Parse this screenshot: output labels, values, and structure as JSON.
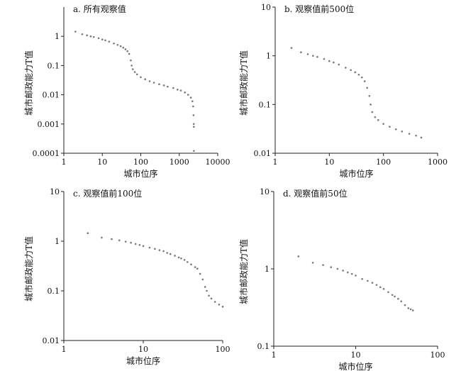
{
  "chart_data": [
    {
      "id": "a",
      "type": "scatter",
      "title": "a. 所有观察值",
      "xlabel": "城市位序",
      "ylabel": "城市邮政能力T值",
      "x_scale": "log",
      "y_scale": "log",
      "xlim": [
        1,
        10000
      ],
      "ylim": [
        0.0001,
        10
      ],
      "x_ticks": [
        "1",
        "10",
        "100",
        "1000",
        "10000"
      ],
      "y_ticks": [
        "0.0001",
        "0.001",
        "0.01",
        "0.1",
        "1"
      ],
      "points": [
        [
          2,
          1.45
        ],
        [
          3,
          1.18
        ],
        [
          4,
          1.08
        ],
        [
          5,
          1.0
        ],
        [
          6,
          0.95
        ],
        [
          8,
          0.86
        ],
        [
          10,
          0.78
        ],
        [
          12,
          0.73
        ],
        [
          15,
          0.66
        ],
        [
          20,
          0.57
        ],
        [
          25,
          0.51
        ],
        [
          30,
          0.46
        ],
        [
          35,
          0.41
        ],
        [
          40,
          0.36
        ],
        [
          45,
          0.31
        ],
        [
          50,
          0.25
        ],
        [
          55,
          0.15
        ],
        [
          58,
          0.1
        ],
        [
          62,
          0.075
        ],
        [
          70,
          0.06
        ],
        [
          80,
          0.05
        ],
        [
          100,
          0.04
        ],
        [
          130,
          0.034
        ],
        [
          170,
          0.029
        ],
        [
          220,
          0.026
        ],
        [
          300,
          0.023
        ],
        [
          400,
          0.021
        ],
        [
          500,
          0.019
        ],
        [
          700,
          0.017
        ],
        [
          900,
          0.015
        ],
        [
          1100,
          0.014
        ],
        [
          1400,
          0.012
        ],
        [
          1700,
          0.01
        ],
        [
          2000,
          0.008
        ],
        [
          2200,
          0.006
        ],
        [
          2300,
          0.004
        ],
        [
          2350,
          0.002
        ],
        [
          2380,
          0.001
        ],
        [
          2390,
          0.0008
        ],
        [
          2400,
          0.00012
        ]
      ]
    },
    {
      "id": "b",
      "type": "scatter",
      "title": "b. 观察值前500位",
      "xlabel": "城市位序",
      "ylabel": "城市邮政能力T值",
      "x_scale": "log",
      "y_scale": "log",
      "xlim": [
        1,
        1000
      ],
      "ylim": [
        0.01,
        10
      ],
      "x_ticks": [
        "1",
        "10",
        "100",
        "1000"
      ],
      "y_ticks": [
        "0.01",
        "0.1",
        "1",
        "10"
      ],
      "points": [
        [
          2,
          1.45
        ],
        [
          3,
          1.18
        ],
        [
          4,
          1.08
        ],
        [
          5,
          1.0
        ],
        [
          6,
          0.95
        ],
        [
          8,
          0.86
        ],
        [
          10,
          0.78
        ],
        [
          12,
          0.73
        ],
        [
          15,
          0.66
        ],
        [
          20,
          0.57
        ],
        [
          25,
          0.51
        ],
        [
          30,
          0.46
        ],
        [
          35,
          0.41
        ],
        [
          40,
          0.36
        ],
        [
          45,
          0.3
        ],
        [
          50,
          0.22
        ],
        [
          55,
          0.15
        ],
        [
          58,
          0.1
        ],
        [
          62,
          0.07
        ],
        [
          70,
          0.055
        ],
        [
          80,
          0.048
        ],
        [
          100,
          0.04
        ],
        [
          130,
          0.035
        ],
        [
          170,
          0.031
        ],
        [
          220,
          0.028
        ],
        [
          300,
          0.025
        ],
        [
          400,
          0.023
        ],
        [
          500,
          0.021
        ]
      ]
    },
    {
      "id": "c",
      "type": "scatter",
      "title": "c. 观察值前100位",
      "xlabel": "城市位序",
      "ylabel": "城市邮政能力T值",
      "x_scale": "log",
      "y_scale": "log",
      "xlim": [
        1,
        100
      ],
      "ylim": [
        0.01,
        10
      ],
      "x_ticks": [
        "1",
        "10",
        "100"
      ],
      "y_ticks": [
        "0.01",
        "0.1",
        "1",
        "10"
      ],
      "points": [
        [
          2,
          1.45
        ],
        [
          3,
          1.18
        ],
        [
          4,
          1.1
        ],
        [
          5,
          1.04
        ],
        [
          6,
          0.98
        ],
        [
          7,
          0.93
        ],
        [
          8,
          0.88
        ],
        [
          9,
          0.84
        ],
        [
          10,
          0.8
        ],
        [
          12,
          0.74
        ],
        [
          14,
          0.7
        ],
        [
          16,
          0.66
        ],
        [
          18,
          0.63
        ],
        [
          20,
          0.58
        ],
        [
          22,
          0.55
        ],
        [
          25,
          0.51
        ],
        [
          28,
          0.47
        ],
        [
          30,
          0.45
        ],
        [
          33,
          0.42
        ],
        [
          36,
          0.38
        ],
        [
          40,
          0.34
        ],
        [
          45,
          0.3
        ],
        [
          48,
          0.28
        ],
        [
          52,
          0.22
        ],
        [
          56,
          0.17
        ],
        [
          60,
          0.12
        ],
        [
          63,
          0.1
        ],
        [
          67,
          0.08
        ],
        [
          72,
          0.07
        ],
        [
          80,
          0.06
        ],
        [
          90,
          0.053
        ],
        [
          100,
          0.048
        ]
      ]
    },
    {
      "id": "d",
      "type": "scatter",
      "title": "d. 观察值前50位",
      "xlabel": "城市位序",
      "ylabel": "城市邮政能力T值",
      "x_scale": "log",
      "y_scale": "log",
      "xlim": [
        1,
        100
      ],
      "ylim": [
        0.1,
        10
      ],
      "x_ticks": [
        "1",
        "10",
        "100"
      ],
      "y_ticks": [
        "0.1",
        "1",
        "10"
      ],
      "points": [
        [
          2,
          1.45
        ],
        [
          3,
          1.2
        ],
        [
          4,
          1.12
        ],
        [
          5,
          1.05
        ],
        [
          6,
          1.0
        ],
        [
          7,
          0.95
        ],
        [
          8,
          0.9
        ],
        [
          9,
          0.86
        ],
        [
          10,
          0.82
        ],
        [
          12,
          0.74
        ],
        [
          14,
          0.7
        ],
        [
          16,
          0.66
        ],
        [
          18,
          0.62
        ],
        [
          20,
          0.58
        ],
        [
          22,
          0.55
        ],
        [
          25,
          0.5
        ],
        [
          28,
          0.46
        ],
        [
          30,
          0.44
        ],
        [
          33,
          0.41
        ],
        [
          36,
          0.38
        ],
        [
          40,
          0.34
        ],
        [
          44,
          0.31
        ],
        [
          47,
          0.3
        ],
        [
          50,
          0.29
        ]
      ]
    }
  ]
}
